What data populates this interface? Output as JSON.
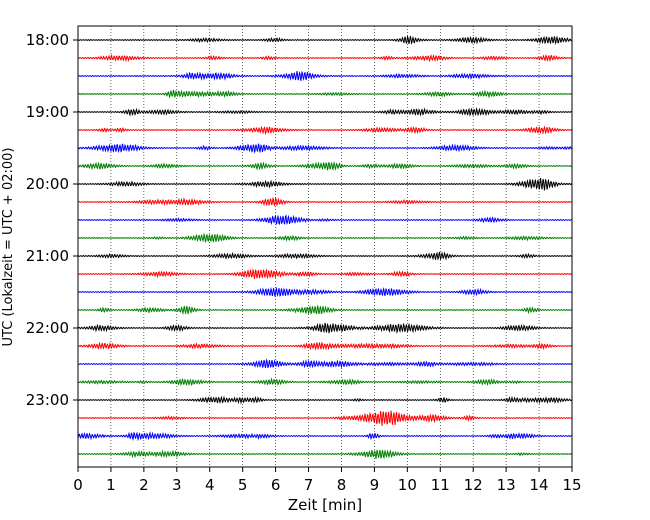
{
  "chart_data": {
    "type": "line",
    "title": "",
    "xlabel": "Zeit  [min]",
    "ylabel": "UTC (Lokalzeit = UTC + 02:00)",
    "xlim": [
      0,
      15
    ],
    "x_ticks": [
      "0",
      "1",
      "2",
      "3",
      "4",
      "5",
      "6",
      "7",
      "8",
      "9",
      "10",
      "11",
      "12",
      "13",
      "14",
      "15"
    ],
    "y_tick_labels": [
      "18:00",
      "19:00",
      "20:00",
      "21:00",
      "22:00",
      "23:00"
    ],
    "y_tick_trace_index": [
      0,
      4,
      8,
      12,
      16,
      20
    ],
    "trace_interval_minutes": 15,
    "grid": "vertical dotted at each minute",
    "trace_colors": [
      "#000000",
      "#ff0000",
      "#0000ff",
      "#008000"
    ],
    "traces": [
      {
        "start": "18:00",
        "color": "#000000"
      },
      {
        "start": "18:15",
        "color": "#ff0000"
      },
      {
        "start": "18:30",
        "color": "#0000ff"
      },
      {
        "start": "18:45",
        "color": "#008000"
      },
      {
        "start": "19:00",
        "color": "#000000"
      },
      {
        "start": "19:15",
        "color": "#ff0000"
      },
      {
        "start": "19:30",
        "color": "#0000ff"
      },
      {
        "start": "19:45",
        "color": "#008000"
      },
      {
        "start": "20:00",
        "color": "#000000"
      },
      {
        "start": "20:15",
        "color": "#ff0000"
      },
      {
        "start": "20:30",
        "color": "#0000ff"
      },
      {
        "start": "20:45",
        "color": "#008000"
      },
      {
        "start": "21:00",
        "color": "#000000"
      },
      {
        "start": "21:15",
        "color": "#ff0000"
      },
      {
        "start": "21:30",
        "color": "#0000ff"
      },
      {
        "start": "21:45",
        "color": "#008000"
      },
      {
        "start": "22:00",
        "color": "#000000"
      },
      {
        "start": "22:15",
        "color": "#ff0000"
      },
      {
        "start": "22:30",
        "color": "#0000ff"
      },
      {
        "start": "22:45",
        "color": "#008000"
      },
      {
        "start": "23:00",
        "color": "#000000"
      },
      {
        "start": "23:15",
        "color": "#ff0000"
      },
      {
        "start": "23:30",
        "color": "#0000ff"
      },
      {
        "start": "23:45",
        "color": "#008000"
      }
    ]
  }
}
